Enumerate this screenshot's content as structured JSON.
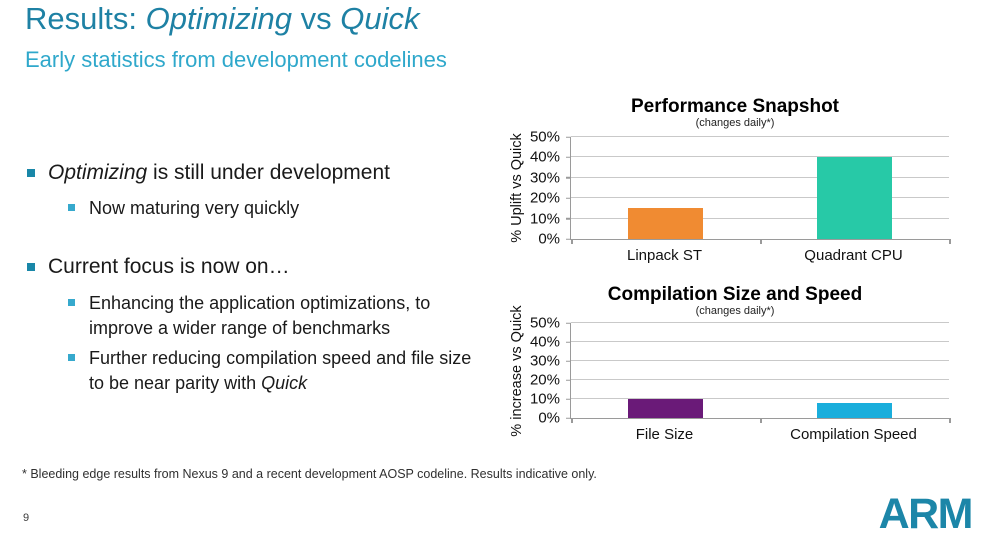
{
  "slide": {
    "title": {
      "prefix": "Results: ",
      "italic1": "Optimizing",
      "middle": " vs ",
      "italic2": "Quick"
    },
    "subtitle": "Early statistics from development codelines",
    "bullets": {
      "b1_italic": "Optimizing",
      "b1_rest": " is still under development",
      "b1_sub": "Now maturing very quickly",
      "b2": "Current focus is now on…",
      "b2_sub1": "Enhancing the application optimizations, to improve a wider range of benchmarks",
      "b2_sub2_pre": "Further reducing compilation speed and file size to be near parity with ",
      "b2_sub2_italic": "Quick"
    },
    "footnote": "* Bleeding edge results from Nexus 9 and a recent development AOSP codeline. Results indicative only.",
    "page_number": "9",
    "logo_text": "ARM",
    "colors": {
      "title_teal": "#1E81A4",
      "subtitle_cyan": "#2FA8CB",
      "bullet_l1": "#1987A8",
      "bullet_l2": "#36A9CD",
      "logo": "#1C86A8"
    }
  },
  "chart_data": [
    {
      "type": "bar",
      "title": "Performance Snapshot",
      "subtitle": "(changes daily*)",
      "ylabel": "% Uplift vs Quick",
      "xlabel": "",
      "categories": [
        "Linpack ST",
        "Quadrant CPU"
      ],
      "values": [
        15,
        40
      ],
      "colors": [
        "#F08B32",
        "#27C9A7"
      ],
      "ylim": [
        0,
        50
      ],
      "ytick_step": 10,
      "yticks": [
        "0%",
        "10%",
        "20%",
        "30%",
        "40%",
        "50%"
      ],
      "grid": true,
      "legend": "none"
    },
    {
      "type": "bar",
      "title": "Compilation Size and Speed",
      "subtitle": "(changes daily*)",
      "ylabel": "% increase vs Quick",
      "xlabel": "",
      "categories": [
        "File Size",
        "Compilation Speed"
      ],
      "values": [
        10,
        8
      ],
      "colors": [
        "#6A1A78",
        "#1AAEDC"
      ],
      "ylim": [
        0,
        50
      ],
      "ytick_step": 10,
      "yticks": [
        "0%",
        "10%",
        "20%",
        "30%",
        "40%",
        "50%"
      ],
      "grid": true,
      "legend": "none"
    }
  ]
}
